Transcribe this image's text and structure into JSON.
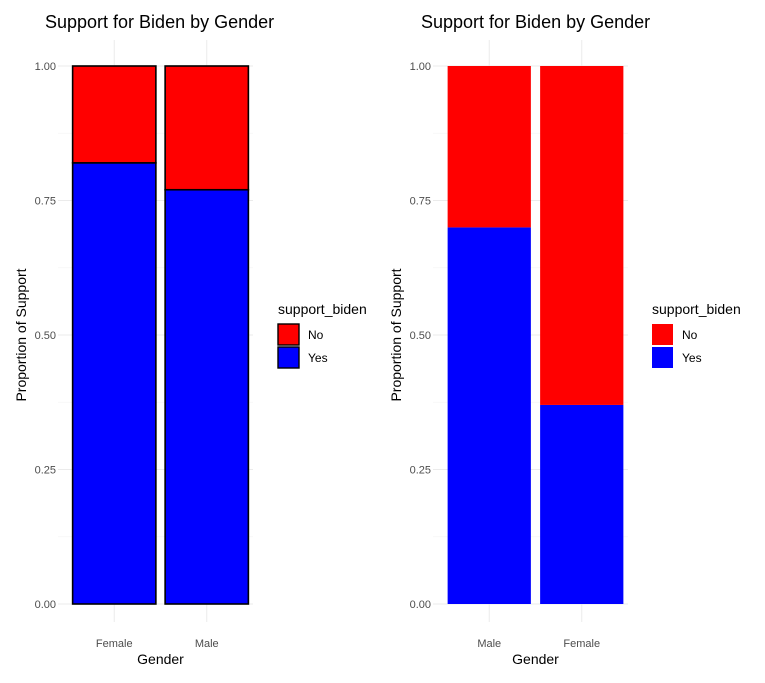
{
  "chart_data": [
    {
      "type": "bar",
      "stacked": true,
      "title": "Support for Biden by Gender",
      "xlabel": "Gender",
      "ylabel": "Proportion of Support",
      "categories": [
        "Female",
        "Male"
      ],
      "ylim": [
        0,
        1
      ],
      "yticks": [
        "0.00",
        "0.25",
        "0.50",
        "0.75",
        "1.00"
      ],
      "grid": true,
      "bar_outline": true,
      "legend": {
        "title": "support_biden",
        "position": "right",
        "entries": [
          "No",
          "Yes"
        ]
      },
      "series": [
        {
          "name": "Yes",
          "color": "#0000ff",
          "values": [
            0.82,
            0.77
          ]
        },
        {
          "name": "No",
          "color": "#ff0000",
          "values": [
            0.18,
            0.23
          ]
        }
      ]
    },
    {
      "type": "bar",
      "stacked": true,
      "title": "Support for Biden by Gender",
      "xlabel": "Gender",
      "ylabel": "Proportion of Support",
      "categories": [
        "Male",
        "Female"
      ],
      "ylim": [
        0,
        1
      ],
      "yticks": [
        "0.00",
        "0.25",
        "0.50",
        "0.75",
        "1.00"
      ],
      "grid": true,
      "bar_outline": false,
      "legend": {
        "title": "support_biden",
        "position": "right",
        "entries": [
          "No",
          "Yes"
        ]
      },
      "series": [
        {
          "name": "Yes",
          "color": "#0000ff",
          "values": [
            0.7,
            0.37
          ]
        },
        {
          "name": "No",
          "color": "#ff0000",
          "values": [
            0.3,
            0.63
          ]
        }
      ]
    }
  ]
}
